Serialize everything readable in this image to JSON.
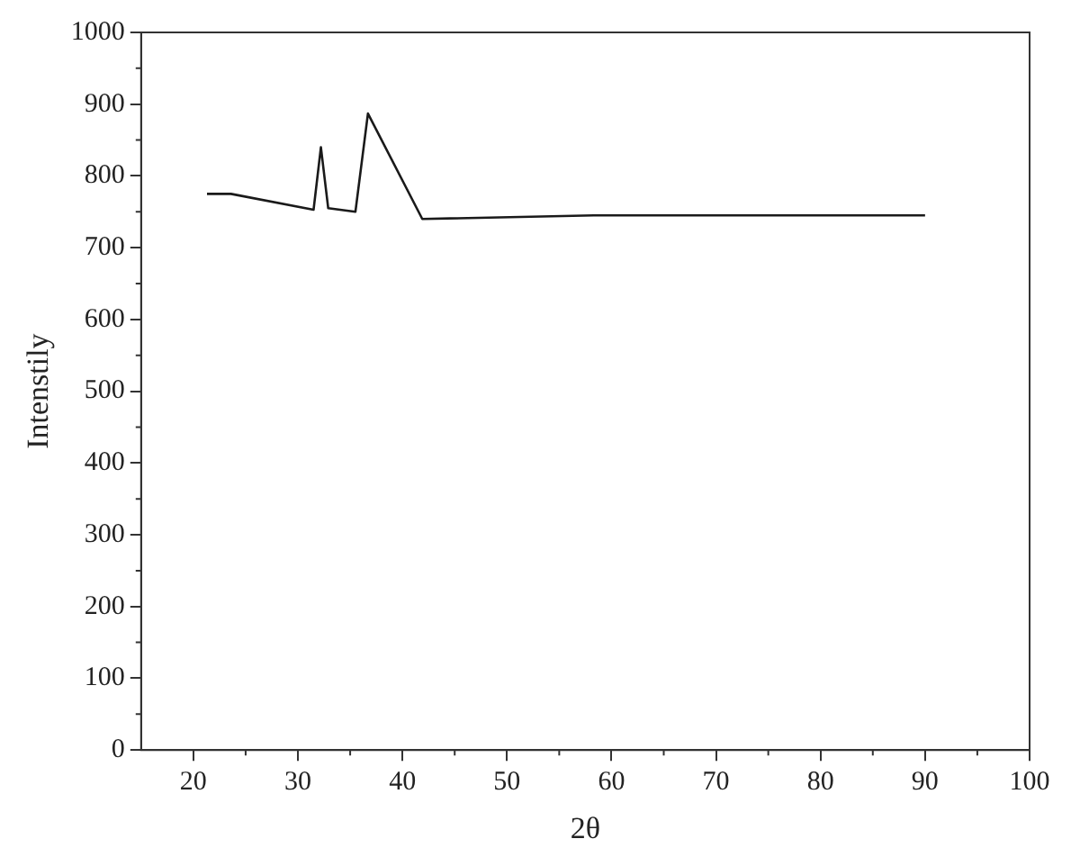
{
  "chart_data": {
    "type": "line",
    "xlabel": "2θ",
    "ylabel": "Intenstily",
    "x": [
      21.3,
      23.6,
      31.5,
      32.2,
      32.9,
      35.5,
      36.7,
      41.9,
      58.3,
      90
    ],
    "series": [
      {
        "color": "#1a1a1a",
        "values": [
          775,
          775,
          753,
          840,
          755,
          750,
          887,
          740,
          745,
          745
        ]
      }
    ],
    "xlim": [
      15,
      100
    ],
    "xticks": [
      20,
      30,
      40,
      50,
      60,
      70,
      80,
      90,
      100
    ],
    "ylim": [
      0,
      1000
    ],
    "yticks": [
      0,
      100,
      200,
      300,
      400,
      500,
      600,
      700,
      800,
      900,
      1000
    ],
    "grid": false,
    "legend": false,
    "marker": "none",
    "line_style": "solid"
  }
}
